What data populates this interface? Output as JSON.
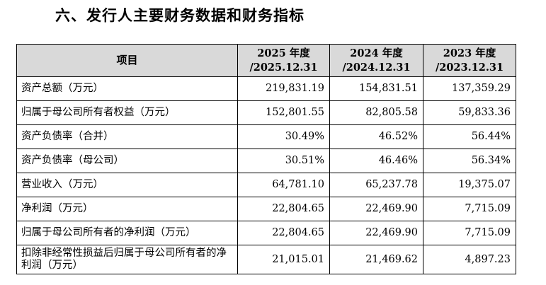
{
  "title": "六、发行人主要财务数据和财务指标",
  "table": {
    "headers": {
      "item": "项目",
      "col1": [
        "2025 年度",
        "/2025.12.31"
      ],
      "col2": [
        "2024 年度",
        "/2024.12.31"
      ],
      "col3": [
        "2023 年度",
        "/2023.12.31"
      ]
    },
    "rows": [
      {
        "label": "资产总额（万元）",
        "v1": "219,831.19",
        "v2": "154,831.51",
        "v3": "137,359.29"
      },
      {
        "label": "归属于母公司所有者权益（万元）",
        "v1": "152,801.55",
        "v2": "82,805.58",
        "v3": "59,833.36"
      },
      {
        "label": "资产负债率（合并）",
        "v1": "30.49%",
        "v2": "46.52%",
        "v3": "56.44%"
      },
      {
        "label": "资产负债率（母公司）",
        "v1": "30.51%",
        "v2": "46.46%",
        "v3": "56.34%"
      },
      {
        "label": "营业收入（万元）",
        "v1": "64,781.10",
        "v2": "65,237.78",
        "v3": "19,375.07"
      },
      {
        "label": "净利润（万元）",
        "v1": "22,804.65",
        "v2": "22,469.90",
        "v3": "7,715.09"
      },
      {
        "label": "归属于母公司所有者的净利润（万元）",
        "v1": "22,804.65",
        "v2": "22,469.90",
        "v3": "7,715.09"
      },
      {
        "label": "扣除非经常性损益后归属于母公司所有者的净利润（万元）",
        "v1": "21,015.01",
        "v2": "21,469.62",
        "v3": "4,897.23"
      }
    ]
  }
}
